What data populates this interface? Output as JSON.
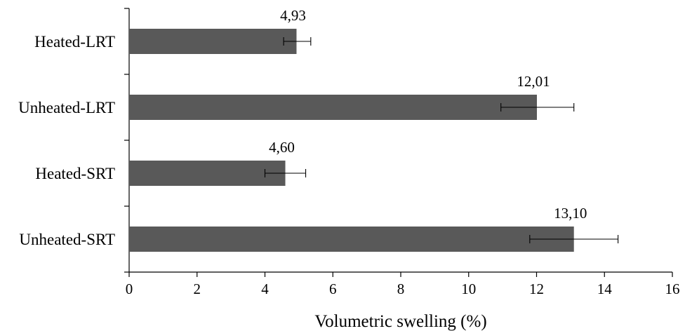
{
  "chart_data": {
    "type": "bar",
    "orientation": "horizontal",
    "categories": [
      "Heated-LRT",
      "Unheated-LRT",
      "Heated-SRT",
      "Unheated-SRT"
    ],
    "values": [
      4.93,
      12.01,
      4.6,
      13.1
    ],
    "value_labels": [
      "4,93",
      "12,01",
      "4,60",
      "13,10"
    ],
    "error_bars": [
      {
        "low": 4.55,
        "high": 5.35
      },
      {
        "low": 10.95,
        "high": 13.1
      },
      {
        "low": 4.0,
        "high": 5.2
      },
      {
        "low": 11.8,
        "high": 14.4
      }
    ],
    "title": "",
    "xlabel": "Volumetric swelling (%)",
    "ylabel": "",
    "xlim": [
      0,
      16
    ],
    "xticks": [
      "0",
      "2",
      "4",
      "6",
      "8",
      "10",
      "12",
      "14",
      "16"
    ],
    "grid": false,
    "legend": "none",
    "bar_color": "#595959"
  }
}
